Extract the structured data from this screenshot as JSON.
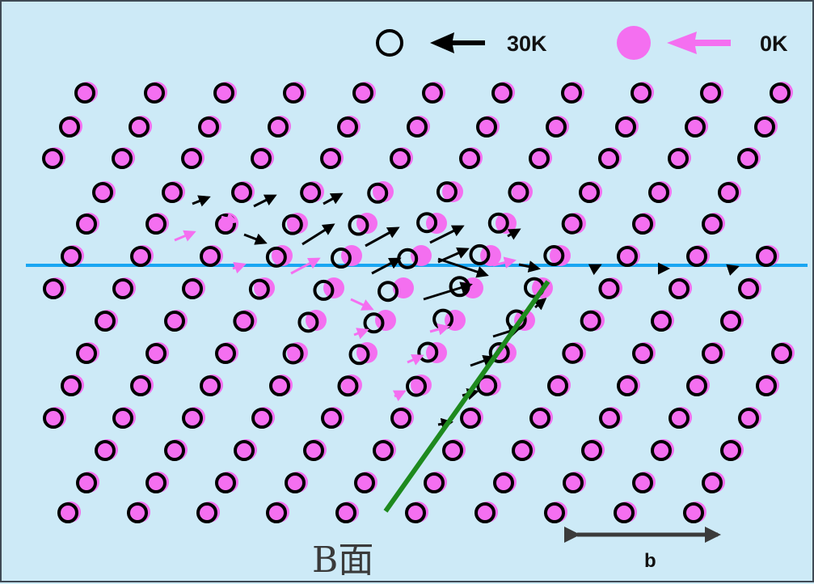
{
  "legend": {
    "label_30k": "30K",
    "label_0k": "0K",
    "color_30k": "#000000",
    "color_0k": "#f46ff0"
  },
  "plane_label": "B面",
  "burgers_label": "b",
  "colors": {
    "background": "#cdeaf7",
    "slip_line": "#1aa6f2",
    "plane_line": "#1e8a1e",
    "burgers_arrow": "#3b3b3b"
  }
}
